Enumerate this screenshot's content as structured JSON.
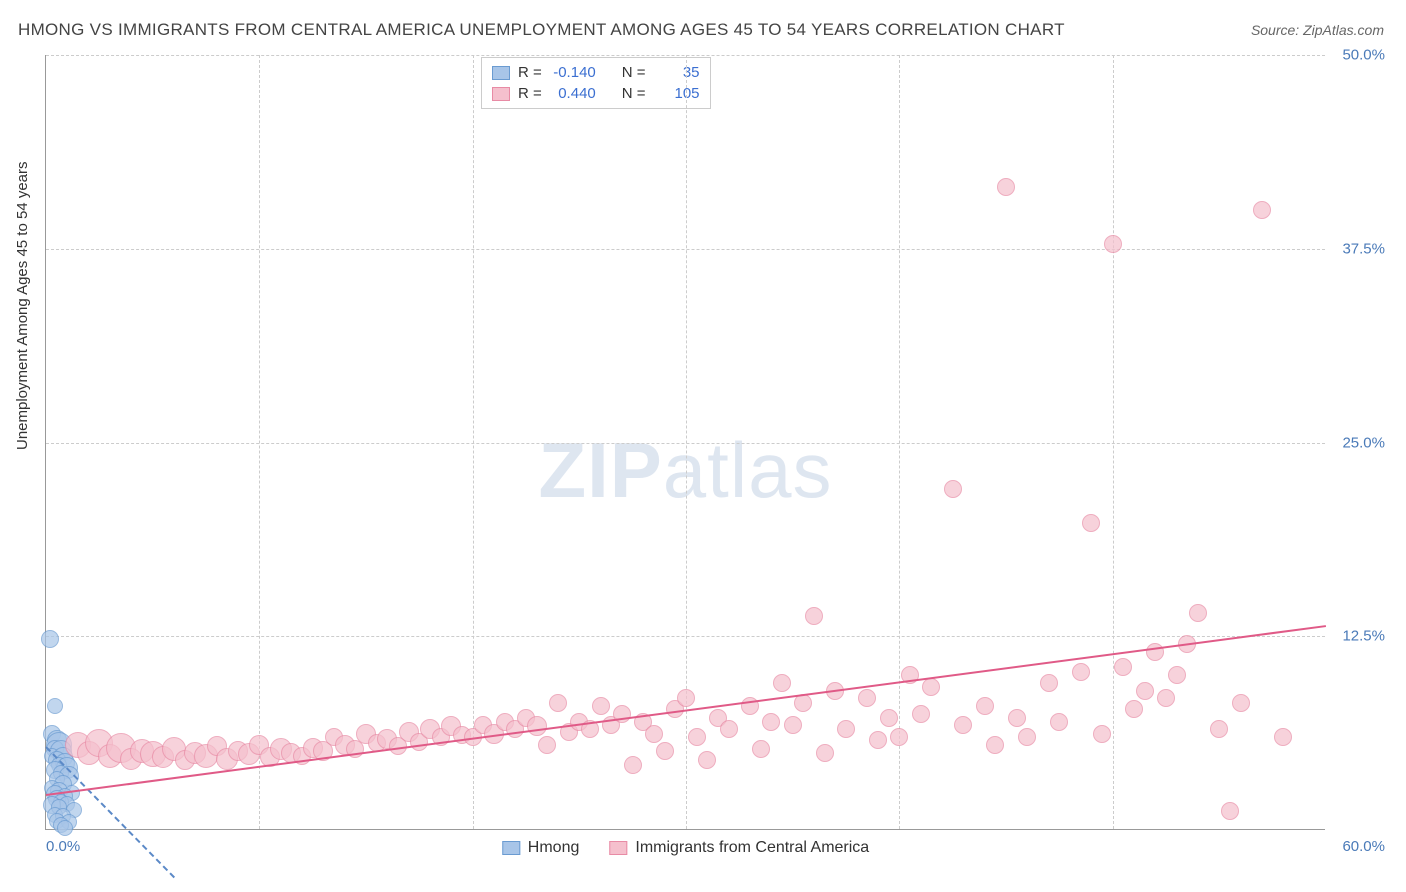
{
  "title": "HMONG VS IMMIGRANTS FROM CENTRAL AMERICA UNEMPLOYMENT AMONG AGES 45 TO 54 YEARS CORRELATION CHART",
  "source": "Source: ZipAtlas.com",
  "ylabel": "Unemployment Among Ages 45 to 54 years",
  "watermark_bold": "ZIP",
  "watermark_light": "atlas",
  "chart": {
    "type": "scatter",
    "xlim": [
      0,
      60
    ],
    "ylim": [
      0,
      50
    ],
    "xtick_labels": {
      "min": "0.0%",
      "max": "60.0%"
    },
    "ytick_labels": [
      "12.5%",
      "25.0%",
      "37.5%",
      "50.0%"
    ],
    "ytick_values": [
      12.5,
      25.0,
      37.5,
      50.0
    ],
    "xgrid_values": [
      10,
      20,
      30,
      40,
      50
    ],
    "background_color": "#ffffff",
    "grid_color": "#cccccc",
    "axis_color": "#999999",
    "tick_color": "#4a7ab8",
    "tick_fontsize": 15,
    "title_color": "#444444",
    "title_fontsize": 17,
    "label_fontsize": 15,
    "marker_style": "circle",
    "marker_stroke_width": 1.5,
    "fill_opacity": 0.35
  },
  "series": [
    {
      "name": "Hmong",
      "key": "hmong",
      "color_fill": "#a8c5e8",
      "color_stroke": "#6a9bd1",
      "R": "-0.140",
      "N": "35",
      "trend": {
        "x1": 0,
        "y1": 5.4,
        "x2": 6,
        "y2": -3.0,
        "color": "#5b89c7",
        "dashed": true
      },
      "points": [
        {
          "x": 0.2,
          "y": 12.3,
          "r": 9
        },
        {
          "x": 0.4,
          "y": 8.0,
          "r": 8
        },
        {
          "x": 0.3,
          "y": 6.2,
          "r": 9
        },
        {
          "x": 0.5,
          "y": 5.8,
          "r": 10
        },
        {
          "x": 0.6,
          "y": 5.5,
          "r": 13
        },
        {
          "x": 0.4,
          "y": 5.2,
          "r": 9
        },
        {
          "x": 0.7,
          "y": 5.1,
          "r": 11
        },
        {
          "x": 0.3,
          "y": 4.8,
          "r": 8
        },
        {
          "x": 0.8,
          "y": 4.7,
          "r": 10
        },
        {
          "x": 0.5,
          "y": 4.5,
          "r": 9
        },
        {
          "x": 0.9,
          "y": 4.3,
          "r": 10
        },
        {
          "x": 0.6,
          "y": 4.2,
          "r": 8
        },
        {
          "x": 1.0,
          "y": 4.0,
          "r": 11
        },
        {
          "x": 0.4,
          "y": 3.9,
          "r": 9
        },
        {
          "x": 0.7,
          "y": 3.7,
          "r": 8
        },
        {
          "x": 1.1,
          "y": 3.5,
          "r": 10
        },
        {
          "x": 0.5,
          "y": 3.3,
          "r": 8
        },
        {
          "x": 0.8,
          "y": 3.0,
          "r": 9
        },
        {
          "x": 0.3,
          "y": 2.7,
          "r": 8
        },
        {
          "x": 0.6,
          "y": 2.5,
          "r": 9
        },
        {
          "x": 1.2,
          "y": 2.4,
          "r": 8
        },
        {
          "x": 0.4,
          "y": 2.3,
          "r": 9
        },
        {
          "x": 0.9,
          "y": 2.2,
          "r": 8
        },
        {
          "x": 0.5,
          "y": 2.0,
          "r": 9
        },
        {
          "x": 0.7,
          "y": 1.8,
          "r": 8
        },
        {
          "x": 1.0,
          "y": 1.7,
          "r": 8
        },
        {
          "x": 0.3,
          "y": 1.6,
          "r": 9
        },
        {
          "x": 0.6,
          "y": 1.5,
          "r": 8
        },
        {
          "x": 1.3,
          "y": 1.3,
          "r": 8
        },
        {
          "x": 0.4,
          "y": 1.0,
          "r": 8
        },
        {
          "x": 0.8,
          "y": 0.9,
          "r": 8
        },
        {
          "x": 0.5,
          "y": 0.6,
          "r": 8
        },
        {
          "x": 1.1,
          "y": 0.5,
          "r": 8
        },
        {
          "x": 0.7,
          "y": 0.3,
          "r": 8
        },
        {
          "x": 0.9,
          "y": 0.1,
          "r": 8
        }
      ]
    },
    {
      "name": "Immigrants from Central America",
      "key": "ica",
      "color_fill": "#f5c0cd",
      "color_stroke": "#e88ba5",
      "R": "0.440",
      "N": "105",
      "trend": {
        "x1": 0,
        "y1": 2.3,
        "x2": 60,
        "y2": 13.2,
        "color": "#e05a87",
        "dashed": false
      },
      "points": [
        {
          "x": 1.5,
          "y": 5.5,
          "r": 13
        },
        {
          "x": 2.0,
          "y": 5.0,
          "r": 12
        },
        {
          "x": 2.5,
          "y": 5.6,
          "r": 14
        },
        {
          "x": 3.0,
          "y": 4.8,
          "r": 12
        },
        {
          "x": 3.5,
          "y": 5.3,
          "r": 15
        },
        {
          "x": 4.0,
          "y": 4.6,
          "r": 11
        },
        {
          "x": 4.5,
          "y": 5.1,
          "r": 12
        },
        {
          "x": 5.0,
          "y": 4.9,
          "r": 13
        },
        {
          "x": 5.5,
          "y": 4.7,
          "r": 11
        },
        {
          "x": 6.0,
          "y": 5.2,
          "r": 12
        },
        {
          "x": 6.5,
          "y": 4.5,
          "r": 10
        },
        {
          "x": 7.0,
          "y": 5.0,
          "r": 11
        },
        {
          "x": 7.5,
          "y": 4.8,
          "r": 12
        },
        {
          "x": 8.0,
          "y": 5.4,
          "r": 10
        },
        {
          "x": 8.5,
          "y": 4.6,
          "r": 11
        },
        {
          "x": 9.0,
          "y": 5.1,
          "r": 10
        },
        {
          "x": 9.5,
          "y": 4.9,
          "r": 11
        },
        {
          "x": 10.0,
          "y": 5.5,
          "r": 10
        },
        {
          "x": 10.5,
          "y": 4.7,
          "r": 10
        },
        {
          "x": 11.0,
          "y": 5.2,
          "r": 11
        },
        {
          "x": 11.5,
          "y": 5.0,
          "r": 10
        },
        {
          "x": 12.0,
          "y": 4.8,
          "r": 9
        },
        {
          "x": 12.5,
          "y": 5.3,
          "r": 10
        },
        {
          "x": 13.0,
          "y": 5.1,
          "r": 10
        },
        {
          "x": 13.5,
          "y": 6.0,
          "r": 9
        },
        {
          "x": 14.0,
          "y": 5.5,
          "r": 10
        },
        {
          "x": 14.5,
          "y": 5.2,
          "r": 9
        },
        {
          "x": 15.0,
          "y": 6.2,
          "r": 10
        },
        {
          "x": 15.5,
          "y": 5.6,
          "r": 9
        },
        {
          "x": 16.0,
          "y": 5.9,
          "r": 10
        },
        {
          "x": 16.5,
          "y": 5.4,
          "r": 9
        },
        {
          "x": 17.0,
          "y": 6.3,
          "r": 10
        },
        {
          "x": 17.5,
          "y": 5.7,
          "r": 9
        },
        {
          "x": 18.0,
          "y": 6.5,
          "r": 10
        },
        {
          "x": 18.5,
          "y": 6.0,
          "r": 9
        },
        {
          "x": 19.0,
          "y": 6.7,
          "r": 10
        },
        {
          "x": 19.5,
          "y": 6.1,
          "r": 9
        },
        {
          "x": 20.0,
          "y": 6.0,
          "r": 9
        },
        {
          "x": 20.5,
          "y": 6.8,
          "r": 9
        },
        {
          "x": 21.0,
          "y": 6.2,
          "r": 10
        },
        {
          "x": 21.5,
          "y": 7.0,
          "r": 9
        },
        {
          "x": 22.0,
          "y": 6.5,
          "r": 9
        },
        {
          "x": 22.5,
          "y": 7.2,
          "r": 9
        },
        {
          "x": 23.0,
          "y": 6.7,
          "r": 10
        },
        {
          "x": 23.5,
          "y": 5.5,
          "r": 9
        },
        {
          "x": 24.0,
          "y": 8.2,
          "r": 9
        },
        {
          "x": 24.5,
          "y": 6.3,
          "r": 9
        },
        {
          "x": 25.0,
          "y": 7.0,
          "r": 9
        },
        {
          "x": 25.5,
          "y": 6.5,
          "r": 9
        },
        {
          "x": 26.0,
          "y": 8.0,
          "r": 9
        },
        {
          "x": 26.5,
          "y": 6.8,
          "r": 9
        },
        {
          "x": 27.0,
          "y": 7.5,
          "r": 9
        },
        {
          "x": 27.5,
          "y": 4.2,
          "r": 9
        },
        {
          "x": 28.0,
          "y": 7.0,
          "r": 9
        },
        {
          "x": 28.5,
          "y": 6.2,
          "r": 9
        },
        {
          "x": 29.0,
          "y": 5.1,
          "r": 9
        },
        {
          "x": 29.5,
          "y": 7.8,
          "r": 9
        },
        {
          "x": 30.0,
          "y": 8.5,
          "r": 9
        },
        {
          "x": 30.5,
          "y": 6.0,
          "r": 9
        },
        {
          "x": 31.0,
          "y": 4.5,
          "r": 9
        },
        {
          "x": 31.5,
          "y": 7.2,
          "r": 9
        },
        {
          "x": 32.0,
          "y": 6.5,
          "r": 9
        },
        {
          "x": 33.0,
          "y": 8.0,
          "r": 9
        },
        {
          "x": 33.5,
          "y": 5.2,
          "r": 9
        },
        {
          "x": 34.0,
          "y": 7.0,
          "r": 9
        },
        {
          "x": 34.5,
          "y": 9.5,
          "r": 9
        },
        {
          "x": 35.0,
          "y": 6.8,
          "r": 9
        },
        {
          "x": 35.5,
          "y": 8.2,
          "r": 9
        },
        {
          "x": 36.0,
          "y": 13.8,
          "r": 9
        },
        {
          "x": 36.5,
          "y": 5.0,
          "r": 9
        },
        {
          "x": 37.0,
          "y": 9.0,
          "r": 9
        },
        {
          "x": 37.5,
          "y": 6.5,
          "r": 9
        },
        {
          "x": 38.5,
          "y": 8.5,
          "r": 9
        },
        {
          "x": 39.0,
          "y": 5.8,
          "r": 9
        },
        {
          "x": 39.5,
          "y": 7.2,
          "r": 9
        },
        {
          "x": 40.0,
          "y": 6.0,
          "r": 9
        },
        {
          "x": 40.5,
          "y": 10.0,
          "r": 9
        },
        {
          "x": 41.0,
          "y": 7.5,
          "r": 9
        },
        {
          "x": 41.5,
          "y": 9.2,
          "r": 9
        },
        {
          "x": 42.5,
          "y": 22.0,
          "r": 9
        },
        {
          "x": 43.0,
          "y": 6.8,
          "r": 9
        },
        {
          "x": 44.0,
          "y": 8.0,
          "r": 9
        },
        {
          "x": 44.5,
          "y": 5.5,
          "r": 9
        },
        {
          "x": 45.0,
          "y": 41.5,
          "r": 9
        },
        {
          "x": 45.5,
          "y": 7.2,
          "r": 9
        },
        {
          "x": 46.0,
          "y": 6.0,
          "r": 9
        },
        {
          "x": 47.0,
          "y": 9.5,
          "r": 9
        },
        {
          "x": 47.5,
          "y": 7.0,
          "r": 9
        },
        {
          "x": 48.5,
          "y": 10.2,
          "r": 9
        },
        {
          "x": 49.0,
          "y": 19.8,
          "r": 9
        },
        {
          "x": 49.5,
          "y": 6.2,
          "r": 9
        },
        {
          "x": 50.0,
          "y": 37.8,
          "r": 9
        },
        {
          "x": 50.5,
          "y": 10.5,
          "r": 9
        },
        {
          "x": 51.0,
          "y": 7.8,
          "r": 9
        },
        {
          "x": 51.5,
          "y": 9.0,
          "r": 9
        },
        {
          "x": 52.0,
          "y": 11.5,
          "r": 9
        },
        {
          "x": 52.5,
          "y": 8.5,
          "r": 9
        },
        {
          "x": 53.0,
          "y": 10.0,
          "r": 9
        },
        {
          "x": 53.5,
          "y": 12.0,
          "r": 9
        },
        {
          "x": 54.0,
          "y": 14.0,
          "r": 9
        },
        {
          "x": 55.0,
          "y": 6.5,
          "r": 9
        },
        {
          "x": 55.5,
          "y": 1.2,
          "r": 9
        },
        {
          "x": 56.0,
          "y": 8.2,
          "r": 9
        },
        {
          "x": 57.0,
          "y": 40.0,
          "r": 9
        },
        {
          "x": 58.0,
          "y": 6.0,
          "r": 9
        }
      ]
    }
  ],
  "legend": {
    "hmong": "Hmong",
    "ica": "Immigrants from Central America"
  },
  "stats_labels": {
    "R": "R =",
    "N": "N ="
  }
}
